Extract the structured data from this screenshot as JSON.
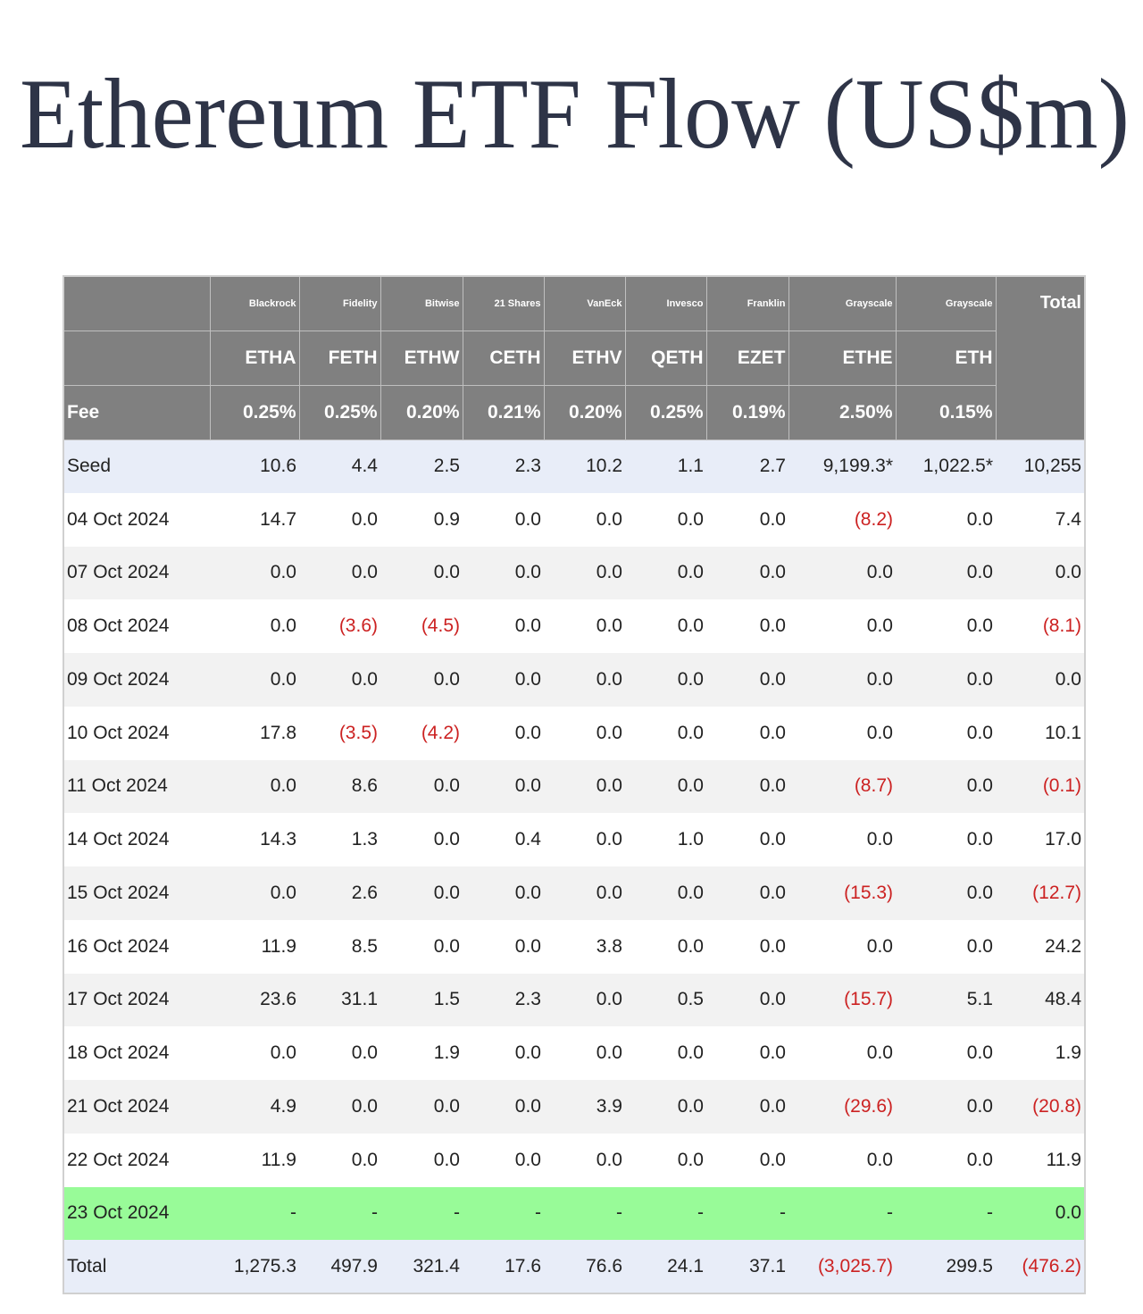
{
  "title": "Ethereum ETF Flow (US$m)",
  "table": {
    "columns": [
      {
        "issuer": "Blackrock",
        "ticker": "ETHA",
        "fee": "0.25%"
      },
      {
        "issuer": "Fidelity",
        "ticker": "FETH",
        "fee": "0.25%"
      },
      {
        "issuer": "Bitwise",
        "ticker": "ETHW",
        "fee": "0.20%"
      },
      {
        "issuer": "21 Shares",
        "ticker": "CETH",
        "fee": "0.21%"
      },
      {
        "issuer": "VanEck",
        "ticker": "ETHV",
        "fee": "0.20%"
      },
      {
        "issuer": "Invesco",
        "ticker": "QETH",
        "fee": "0.25%"
      },
      {
        "issuer": "Franklin",
        "ticker": "EZET",
        "fee": "0.19%"
      },
      {
        "issuer": "Grayscale",
        "ticker": "ETHE",
        "fee": "2.50%"
      },
      {
        "issuer": "Grayscale",
        "ticker": "ETH",
        "fee": "0.15%"
      }
    ],
    "total_header": "Total",
    "fee_label": "Fee",
    "rows": [
      {
        "label": "Seed",
        "color": "#e8edf8",
        "cells": [
          "10.6",
          "4.4",
          "2.5",
          "2.3",
          "10.2",
          "1.1",
          "2.7",
          "9,199.3*",
          "1,022.5*",
          "10,255"
        ]
      },
      {
        "label": "04 Oct 2024",
        "color": "#ffffff",
        "cells": [
          "14.7",
          "0.0",
          "0.9",
          "0.0",
          "0.0",
          "0.0",
          "0.0",
          "(8.2)",
          "0.0",
          "7.4"
        ]
      },
      {
        "label": "07 Oct 2024",
        "color": "#f2f2f2",
        "cells": [
          "0.0",
          "0.0",
          "0.0",
          "0.0",
          "0.0",
          "0.0",
          "0.0",
          "0.0",
          "0.0",
          "0.0"
        ]
      },
      {
        "label": "08 Oct 2024",
        "color": "#ffffff",
        "cells": [
          "0.0",
          "(3.6)",
          "(4.5)",
          "0.0",
          "0.0",
          "0.0",
          "0.0",
          "0.0",
          "0.0",
          "(8.1)"
        ]
      },
      {
        "label": "09 Oct 2024",
        "color": "#f2f2f2",
        "cells": [
          "0.0",
          "0.0",
          "0.0",
          "0.0",
          "0.0",
          "0.0",
          "0.0",
          "0.0",
          "0.0",
          "0.0"
        ]
      },
      {
        "label": "10 Oct 2024",
        "color": "#ffffff",
        "cells": [
          "17.8",
          "(3.5)",
          "(4.2)",
          "0.0",
          "0.0",
          "0.0",
          "0.0",
          "0.0",
          "0.0",
          "10.1"
        ]
      },
      {
        "label": "11 Oct 2024",
        "color": "#f2f2f2",
        "cells": [
          "0.0",
          "8.6",
          "0.0",
          "0.0",
          "0.0",
          "0.0",
          "0.0",
          "(8.7)",
          "0.0",
          "(0.1)"
        ]
      },
      {
        "label": "14 Oct 2024",
        "color": "#ffffff",
        "cells": [
          "14.3",
          "1.3",
          "0.0",
          "0.4",
          "0.0",
          "1.0",
          "0.0",
          "0.0",
          "0.0",
          "17.0"
        ]
      },
      {
        "label": "15 Oct 2024",
        "color": "#f2f2f2",
        "cells": [
          "0.0",
          "2.6",
          "0.0",
          "0.0",
          "0.0",
          "0.0",
          "0.0",
          "(15.3)",
          "0.0",
          "(12.7)"
        ]
      },
      {
        "label": "16 Oct 2024",
        "color": "#ffffff",
        "cells": [
          "11.9",
          "8.5",
          "0.0",
          "0.0",
          "3.8",
          "0.0",
          "0.0",
          "0.0",
          "0.0",
          "24.2"
        ]
      },
      {
        "label": "17 Oct 2024",
        "color": "#f2f2f2",
        "cells": [
          "23.6",
          "31.1",
          "1.5",
          "2.3",
          "0.0",
          "0.5",
          "0.0",
          "(15.7)",
          "5.1",
          "48.4"
        ]
      },
      {
        "label": "18 Oct 2024",
        "color": "#ffffff",
        "cells": [
          "0.0",
          "0.0",
          "1.9",
          "0.0",
          "0.0",
          "0.0",
          "0.0",
          "0.0",
          "0.0",
          "1.9"
        ]
      },
      {
        "label": "21 Oct 2024",
        "color": "#f2f2f2",
        "cells": [
          "4.9",
          "0.0",
          "0.0",
          "0.0",
          "3.9",
          "0.0",
          "0.0",
          "(29.6)",
          "0.0",
          "(20.8)"
        ]
      },
      {
        "label": "22 Oct 2024",
        "color": "#ffffff",
        "cells": [
          "11.9",
          "0.0",
          "0.0",
          "0.0",
          "0.0",
          "0.0",
          "0.0",
          "0.0",
          "0.0",
          "11.9"
        ]
      },
      {
        "label": "23 Oct 2024",
        "color": "#98fb98",
        "cells": [
          "-",
          "-",
          "-",
          "-",
          "-",
          "-",
          "-",
          "-",
          "-",
          "0.0"
        ]
      },
      {
        "label": "Total",
        "color": "#e8edf8",
        "cells": [
          "1,275.3",
          "497.9",
          "321.4",
          "17.6",
          "76.6",
          "24.1",
          "37.1",
          "(3,025.7)",
          "299.5",
          "(476.2)"
        ]
      }
    ]
  }
}
